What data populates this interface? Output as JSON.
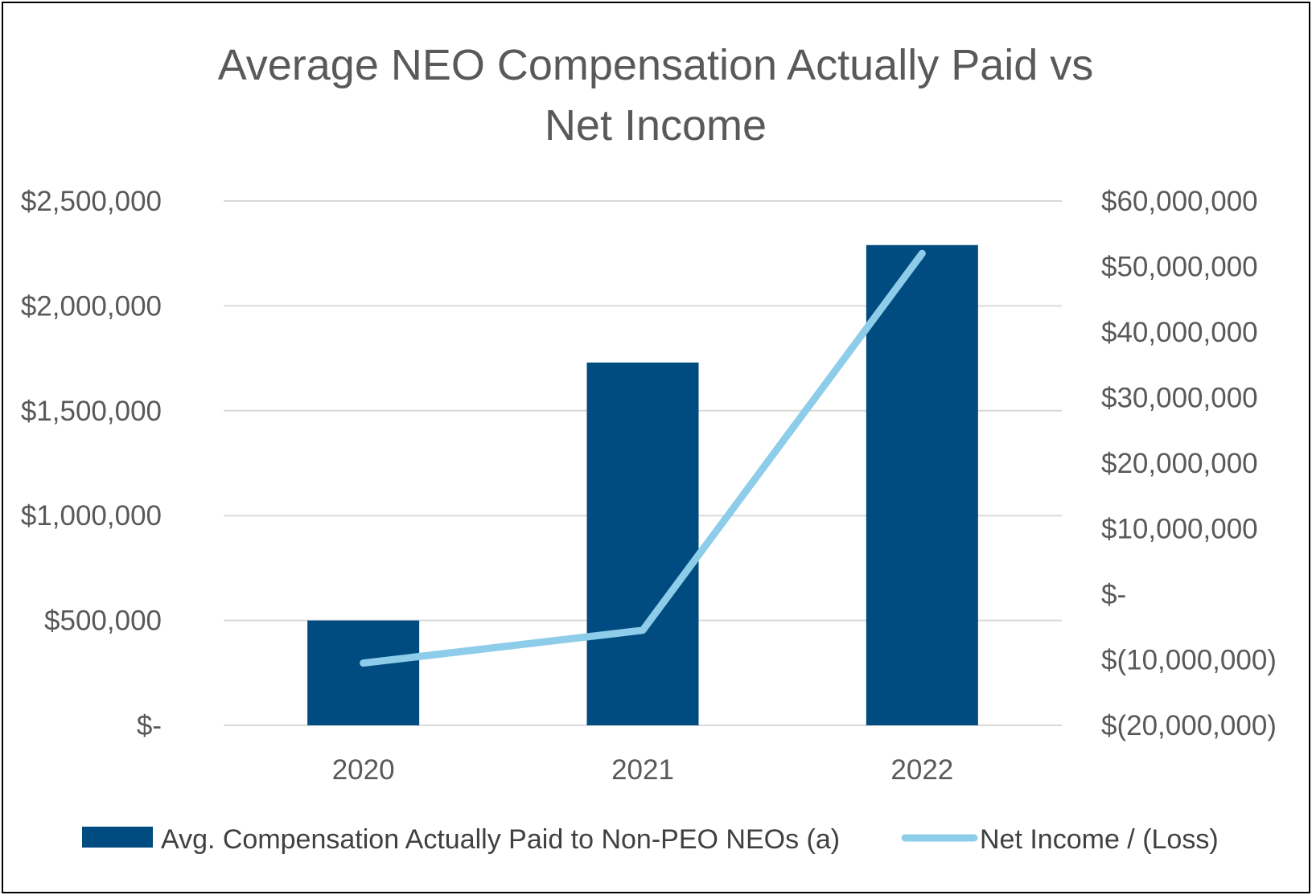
{
  "chart_data": {
    "type": "bar",
    "title_lines": [
      "Average NEO Compensation Actually Paid vs",
      "Net Income"
    ],
    "categories": [
      "2020",
      "2021",
      "2022"
    ],
    "series": [
      {
        "name": "Avg. Compensation Actually Paid to Non-PEO NEOs (a)",
        "type": "bar",
        "axis": "left",
        "color": "#004b7f",
        "values": [
          500000,
          1730000,
          2290000
        ]
      },
      {
        "name": "Net Income / (Loss)",
        "type": "line",
        "axis": "right",
        "color": "#8ecde9",
        "values": [
          -10500000,
          -5500000,
          52000000
        ]
      }
    ],
    "y_left": {
      "range": [
        0,
        2500000
      ],
      "ticks": [
        0,
        500000,
        1000000,
        1500000,
        2000000,
        2500000
      ],
      "tick_labels": [
        "$-",
        "$500,000",
        "$1,000,000",
        "$1,500,000",
        "$2,000,000",
        "$2,500,000"
      ]
    },
    "y_right": {
      "range": [
        -20000000,
        60000000
      ],
      "ticks": [
        -20000000,
        -10000000,
        0,
        10000000,
        20000000,
        30000000,
        40000000,
        50000000,
        60000000
      ],
      "tick_labels": [
        "$(20,000,000)",
        "$(10,000,000)",
        "$-",
        "$10,000,000",
        "$20,000,000",
        "$30,000,000",
        "$40,000,000",
        "$50,000,000",
        "$60,000,000"
      ]
    },
    "grid": true,
    "grid_color": "#d9d9d9",
    "legend_position": "bottom"
  }
}
